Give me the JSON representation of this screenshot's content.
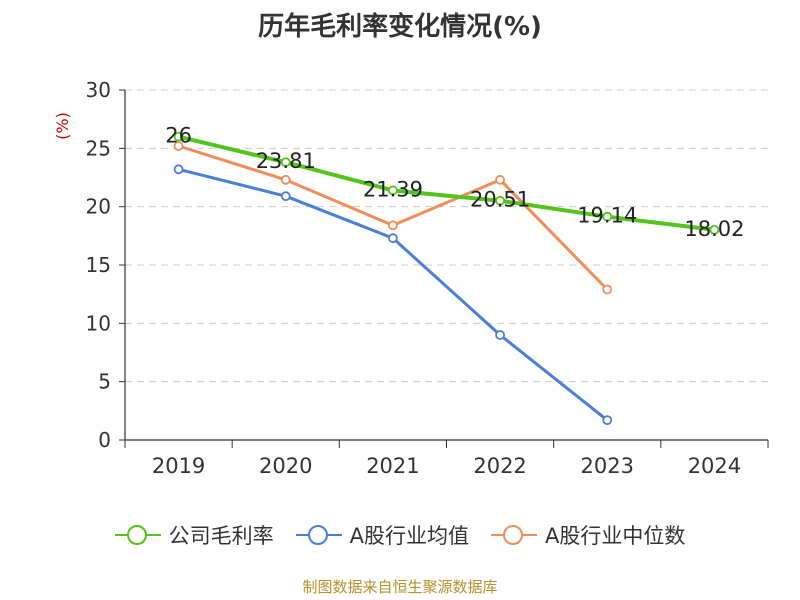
{
  "chart_data": {
    "type": "line",
    "title": "历年毛利率变化情况(%)",
    "ylabel": "(%)",
    "categories": [
      "2019",
      "2020",
      "2021",
      "2022",
      "2023",
      "2024"
    ],
    "y_ticks": [
      "0",
      "5",
      "10",
      "15",
      "20",
      "25",
      "30"
    ],
    "ylim": [
      0,
      30
    ],
    "grid": true,
    "legend_position": "bottom",
    "series": [
      {
        "name": "公司毛利率",
        "color": "#52c41a",
        "values": [
          26,
          23.81,
          21.39,
          20.51,
          19.14,
          18.02
        ],
        "data_labels": [
          "26",
          "23.81",
          "21.39",
          "20.51",
          "19.14",
          "18.02"
        ]
      },
      {
        "name": "A股行业均值",
        "color": "#4a7fd8",
        "values": [
          23.2,
          20.9,
          17.3,
          9.0,
          1.7,
          null
        ]
      },
      {
        "name": "A股行业中位数",
        "color": "#f28c5a",
        "values": [
          25.2,
          22.3,
          18.4,
          22.3,
          12.9,
          null
        ]
      }
    ]
  },
  "source": "制图数据来自恒生聚源数据库"
}
